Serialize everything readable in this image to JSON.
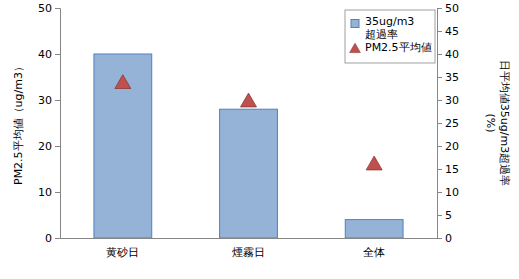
{
  "chart_data": {
    "type": "bar",
    "categories": [
      "黄砂日",
      "煙霧日",
      "全体"
    ],
    "y_label": "PM2.5平均値（ug/m3）",
    "y2_label": "日平均値35ug/m3超過率 (%)",
    "ylim": [
      0,
      50
    ],
    "yticks": [
      0,
      10,
      20,
      30,
      40,
      50
    ],
    "y2lim": [
      0,
      50
    ],
    "y2ticks": [
      0,
      5,
      10,
      15,
      20,
      25,
      30,
      35,
      40,
      45,
      50
    ],
    "grid": false,
    "legend": "upper right",
    "series": [
      {
        "name": "35ug/m3 超過率",
        "type": "bar",
        "axis": "y2",
        "color": "#95b3d7",
        "values": [
          40,
          28,
          4
        ]
      },
      {
        "name": "PM2.5平均値",
        "type": "scatter",
        "axis": "y",
        "marker": "triangle",
        "color": "#c0504d",
        "values": [
          33.5,
          29.5,
          15.8
        ]
      }
    ]
  }
}
